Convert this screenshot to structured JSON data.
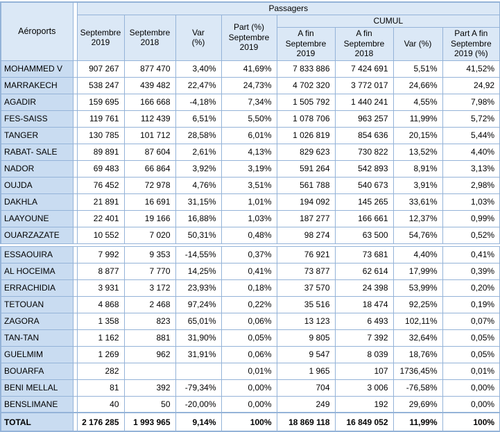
{
  "colors": {
    "border": "#94b3d8",
    "header_bg": "#dbe8f6",
    "airport_column_bg": "#c9dcf1",
    "cell_bg": "#ffffff",
    "text": "#000000"
  },
  "table": {
    "title_row": "Passagers",
    "cumul_label": "CUMUL",
    "airport_col_label": "Aéroports",
    "month_headers": [
      "Septembre\n2019",
      "Septembre\n2018",
      "Var\n(%)",
      "Part (%)\nSeptembre\n2019"
    ],
    "cumul_headers": [
      "A fin\nSeptembre\n2019",
      "A fin\nSeptembre\n2018",
      "Var (%)",
      "Part A fin\nSeptembre\n2019 (%)"
    ],
    "groups": [
      {
        "rows": [
          {
            "name": "MOHAMMED V",
            "values": [
              "907 267",
              "877 470",
              "3,40%",
              "41,69%",
              "7 833 886",
              "7 424 691",
              "5,51%",
              "41,52%"
            ]
          },
          {
            "name": "MARRAKECH",
            "values": [
              "538 247",
              "439 482",
              "22,47%",
              "24,73%",
              "4 702 320",
              "3 772 017",
              "24,66%",
              "24,92"
            ]
          },
          {
            "name": "AGADIR",
            "values": [
              "159 695",
              "166 668",
              "-4,18%",
              "7,34%",
              "1 505 792",
              "1 440 241",
              "4,55%",
              "7,98%"
            ]
          },
          {
            "name": "FES-SAISS",
            "values": [
              "119 761",
              "112 439",
              "6,51%",
              "5,50%",
              "1 078 706",
              "963 257",
              "11,99%",
              "5,72%"
            ]
          },
          {
            "name": "TANGER",
            "values": [
              "130 785",
              "101 712",
              "28,58%",
              "6,01%",
              "1 026 819",
              "854 636",
              "20,15%",
              "5,44%"
            ]
          },
          {
            "name": "RABAT- SALE",
            "values": [
              "89 891",
              "87 604",
              "2,61%",
              "4,13%",
              "829 623",
              "730 822",
              "13,52%",
              "4,40%"
            ]
          },
          {
            "name": "NADOR",
            "values": [
              "69 483",
              "66 864",
              "3,92%",
              "3,19%",
              "591 264",
              "542 893",
              "8,91%",
              "3,13%"
            ]
          },
          {
            "name": "OUJDA",
            "values": [
              "76 452",
              "72 978",
              "4,76%",
              "3,51%",
              "561 788",
              "540 673",
              "3,91%",
              "2,98%"
            ]
          },
          {
            "name": "DAKHLA",
            "values": [
              "21 891",
              "16 691",
              "31,15%",
              "1,01%",
              "194 092",
              "145 265",
              "33,61%",
              "1,03%"
            ]
          },
          {
            "name": "LAAYOUNE",
            "values": [
              "22 401",
              "19 166",
              "16,88%",
              "1,03%",
              "187 277",
              "166 661",
              "12,37%",
              "0,99%"
            ]
          },
          {
            "name": "OUARZAZATE",
            "values": [
              "10 552",
              "7 020",
              "50,31%",
              "0,48%",
              "98 274",
              "63 500",
              "54,76%",
              "0,52%"
            ]
          }
        ]
      },
      {
        "rows": [
          {
            "name": "ESSAOUIRA",
            "values": [
              "7 992",
              "9 353",
              "-14,55%",
              "0,37%",
              "76 921",
              "73 681",
              "4,40%",
              "0,41%"
            ]
          },
          {
            "name": "AL HOCEIMA",
            "values": [
              "8 877",
              "7 770",
              "14,25%",
              "0,41%",
              "73 877",
              "62 614",
              "17,99%",
              "0,39%"
            ]
          },
          {
            "name": "ERRACHIDIA",
            "values": [
              "3 931",
              "3 172",
              "23,93%",
              "0,18%",
              "37 570",
              "24 398",
              "53,99%",
              "0,20%"
            ]
          },
          {
            "name": "TETOUAN",
            "values": [
              "4 868",
              "2 468",
              "97,24%",
              "0,22%",
              "35 516",
              "18 474",
              "92,25%",
              "0,19%"
            ]
          },
          {
            "name": "ZAGORA",
            "values": [
              "1 358",
              "823",
              "65,01%",
              "0,06%",
              "13 123",
              "6 493",
              "102,11%",
              "0,07%"
            ]
          },
          {
            "name": "TAN-TAN",
            "values": [
              "1 162",
              "881",
              "31,90%",
              "0,05%",
              "9 805",
              "7 392",
              "32,64%",
              "0,05%"
            ]
          },
          {
            "name": "GUELMIM",
            "values": [
              "1 269",
              "962",
              "31,91%",
              "0,06%",
              "9 547",
              "8 039",
              "18,76%",
              "0,05%"
            ]
          },
          {
            "name": "BOUARFA",
            "values": [
              "282",
              "",
              "",
              "0,01%",
              "1 965",
              "107",
              "1736,45%",
              "0,01%"
            ]
          },
          {
            "name": "BENI MELLAL",
            "values": [
              "81",
              "392",
              "-79,34%",
              "0,00%",
              "704",
              "3 006",
              "-76,58%",
              "0,00%"
            ]
          },
          {
            "name": "BENSLIMANE",
            "values": [
              "40",
              "50",
              "-20,00%",
              "0,00%",
              "249",
              "192",
              "29,69%",
              "0,00%"
            ]
          }
        ]
      }
    ],
    "total_row": {
      "name": "TOTAL",
      "values": [
        "2 176 285",
        "1 993 965",
        "9,14%",
        "100%",
        "18 869 118",
        "16 849 052",
        "11,99%",
        "100%"
      ]
    }
  }
}
